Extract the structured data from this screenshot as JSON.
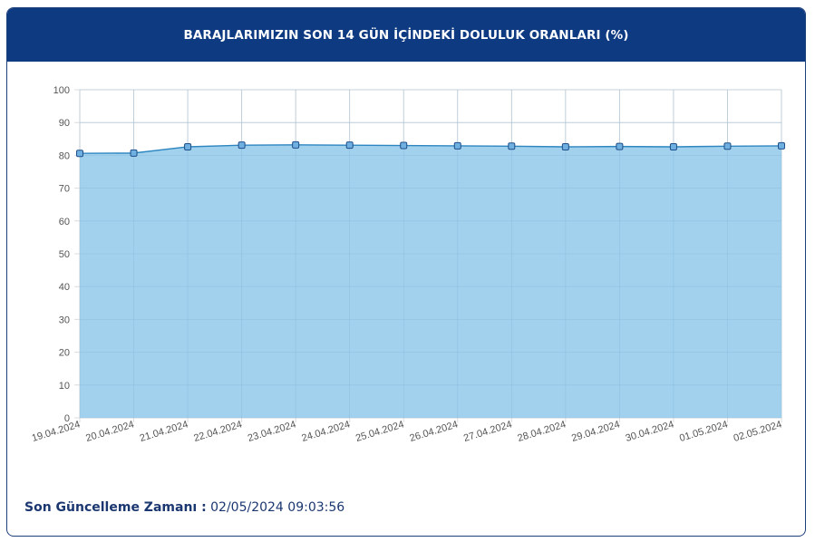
{
  "header": {
    "title": "BARAJLARIMIZIN SON 14 GÜN İÇİNDEKİ DOLULUK ORANLARI (%)"
  },
  "chart_data": {
    "type": "area",
    "title": "BARAJLARIMIZIN SON 14 GÜN İÇİNDEKİ DOLULUK ORANLARI (%)",
    "xlabel": "",
    "ylabel": "",
    "categories": [
      "19.04.2024",
      "20.04.2024",
      "21.04.2024",
      "22.04.2024",
      "23.04.2024",
      "24.04.2024",
      "25.04.2024",
      "26.04.2024",
      "27.04.2024",
      "28.04.2024",
      "29.04.2024",
      "30.04.2024",
      "01.05.2024",
      "02.05.2024"
    ],
    "values": [
      80.6,
      80.7,
      82.6,
      83.1,
      83.2,
      83.1,
      83.0,
      82.9,
      82.8,
      82.6,
      82.7,
      82.6,
      82.8,
      82.9
    ],
    "ylim": [
      0,
      100
    ],
    "yticks": [
      "0",
      "10",
      "20",
      "30",
      "40",
      "50",
      "60",
      "70",
      "80",
      "90",
      "100"
    ],
    "grid": true,
    "colors": {
      "fill": "#9ccfec",
      "line": "#2e86c1",
      "marker": "#3a7fc0",
      "grid": "#dcdcdc"
    }
  },
  "footer": {
    "label": "Son Güncelleme Zamanı :",
    "value": "02/05/2024 09:03:56"
  }
}
